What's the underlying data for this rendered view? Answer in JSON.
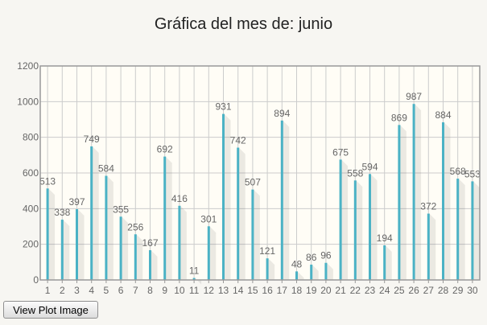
{
  "chart_data": {
    "type": "bar",
    "title": "Gráfica del mes de: junio",
    "categories": [
      "1",
      "2",
      "3",
      "4",
      "5",
      "6",
      "7",
      "8",
      "9",
      "10",
      "11",
      "12",
      "13",
      "14",
      "15",
      "16",
      "17",
      "18",
      "19",
      "20",
      "21",
      "22",
      "23",
      "24",
      "25",
      "26",
      "27",
      "28",
      "29",
      "30"
    ],
    "values": [
      513,
      338,
      397,
      749,
      584,
      355,
      256,
      167,
      692,
      416,
      11,
      301,
      931,
      742,
      507,
      121,
      894,
      48,
      86,
      96,
      675,
      558,
      594,
      194,
      869,
      987,
      372,
      884,
      568,
      553
    ],
    "ylim": [
      0,
      1200
    ],
    "yticks": [
      0,
      200,
      400,
      600,
      800,
      1000,
      1200
    ],
    "xlabel": "",
    "ylabel": "",
    "grid": true,
    "colors": {
      "bar": "#4bb2c5",
      "grid": "#cccccc",
      "plot_background": "#fffdf6",
      "label": "#666666"
    }
  },
  "controls": {
    "view_plot_label": "View Plot Image"
  }
}
